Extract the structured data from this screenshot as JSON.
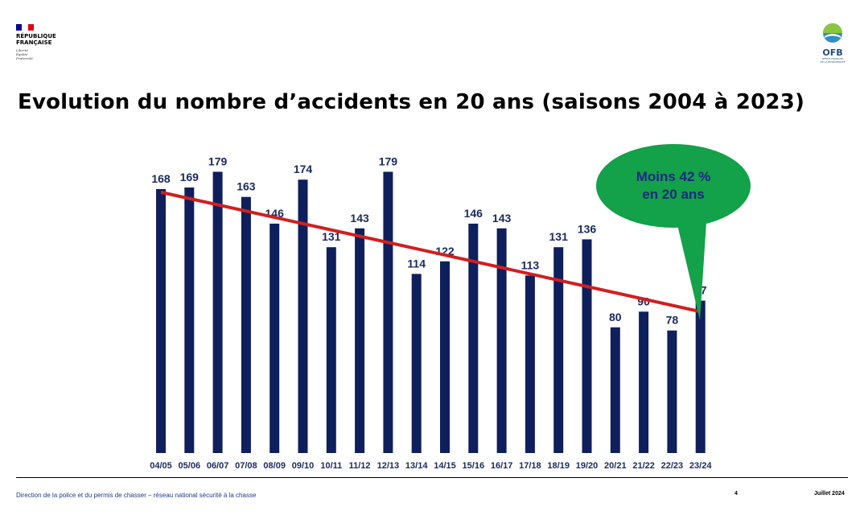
{
  "header": {
    "republique": "RÉPUBLIQUE\nFRANÇAISE",
    "motto": "Liberté\nÉgalité\nFraternité",
    "ofb_logo_text": "OFB",
    "ofb_logo_subtext": "OFFICE FRANÇAIS\nDE LA BIODIVERSITÉ"
  },
  "title": "Evolution du nombre d’accidents en 20 ans (saisons 2004 à 2023)",
  "chart_data": {
    "type": "bar",
    "categories": [
      "04/05",
      "05/06",
      "06/07",
      "07/08",
      "08/09",
      "09/10",
      "10/11",
      "11/12",
      "12/13",
      "13/14",
      "14/15",
      "15/16",
      "16/17",
      "17/18",
      "18/19",
      "19/20",
      "20/21",
      "21/22",
      "22/23",
      "23/24"
    ],
    "values": [
      168,
      169,
      179,
      163,
      146,
      174,
      131,
      143,
      179,
      114,
      122,
      146,
      143,
      113,
      131,
      136,
      80,
      90,
      78,
      97
    ],
    "ylim": [
      0,
      190
    ],
    "trendline": {
      "start": 166,
      "end": 90
    },
    "callout": "Moins 42 %\nen 20 ans",
    "bar_color": "#0f1f5c",
    "trend_color": "#d11f1f",
    "callout_color": "#13a14a",
    "callout_text_color": "#1a2a80"
  },
  "footer": {
    "left": "Direction de la police et du permis de chasser – réseau national sécurité à la chasse",
    "page": "4",
    "date": "Juillet 2024"
  }
}
